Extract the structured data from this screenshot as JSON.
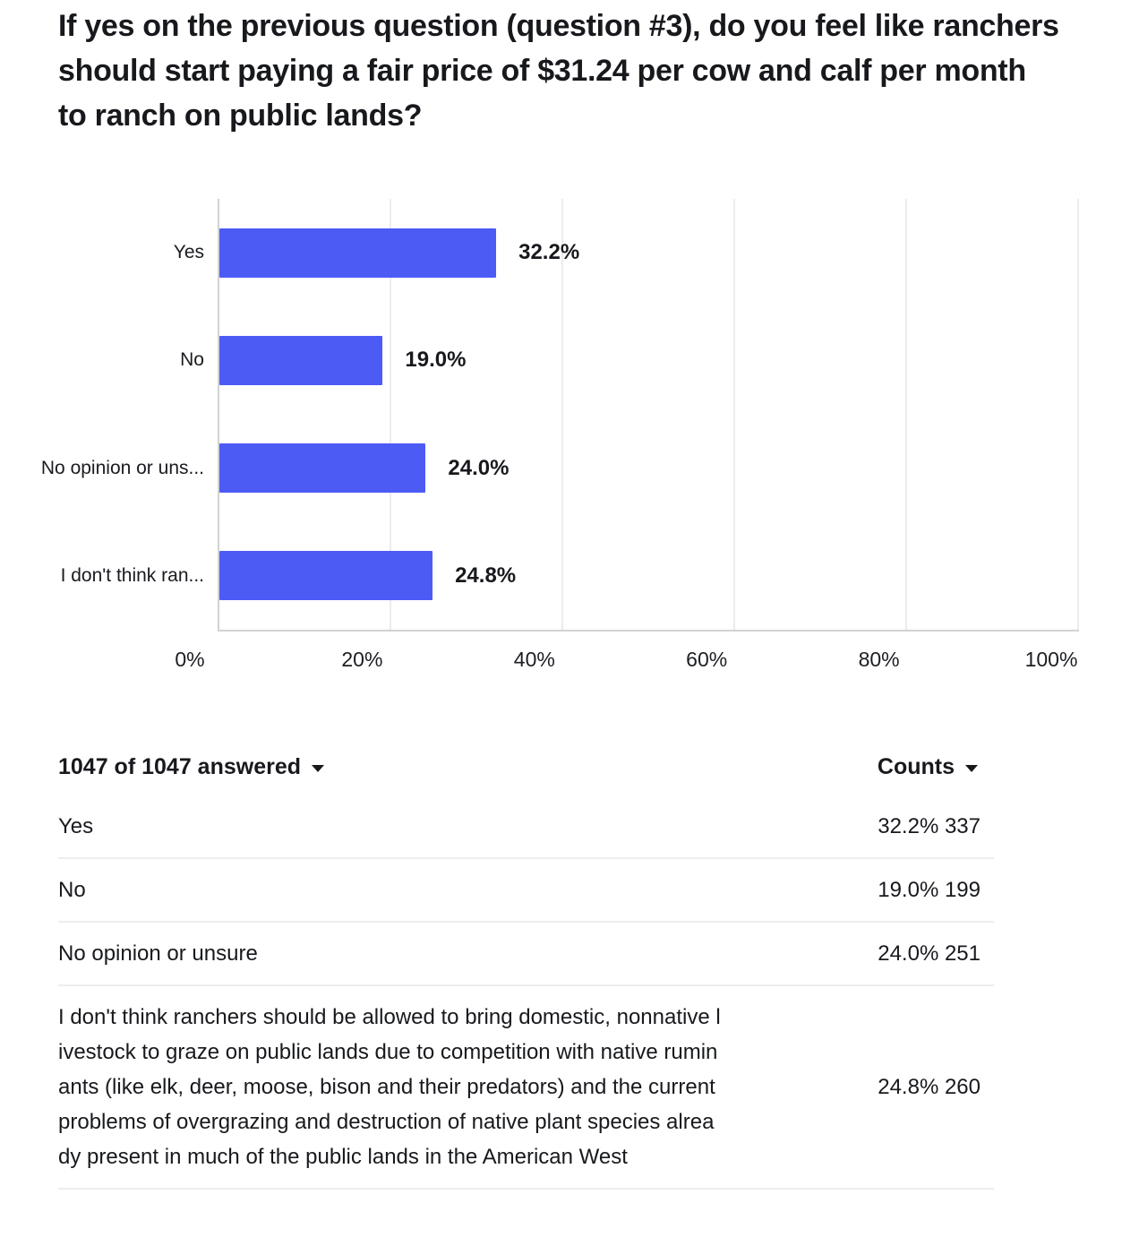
{
  "accent_color": "#4d5bf5",
  "question": {
    "title": "If yes on the previous question (question #3), do you feel like ranchers should start paying a fair price of $31.24 per cow and calf per month to ranch on public lands?"
  },
  "chart_data": {
    "type": "bar",
    "orientation": "horizontal",
    "title": "",
    "xlabel": "",
    "ylabel": "",
    "xlim": [
      0,
      100
    ],
    "x_ticks": [
      "0%",
      "20%",
      "40%",
      "60%",
      "80%",
      "100%"
    ],
    "grid": true,
    "bar_color": "#4d5bf5",
    "categories": [
      "Yes",
      "No",
      "No opinion or unsure",
      "I don't think ranchers should be allowed to bring domestic, nonnative livestock to graze on public lands due to competition with native ruminants (like elk, deer, moose, bison and their predators) and the current problems of overgrazing and destruction of native plant species already present in much of the public lands in the American West"
    ],
    "display_labels": [
      "Yes",
      "No",
      "No opinion or uns...",
      "I don't think ran..."
    ],
    "values": [
      32.2,
      19.0,
      24.0,
      24.8
    ],
    "value_labels": [
      "32.2%",
      "19.0%",
      "24.0%",
      "24.8%"
    ],
    "counts": [
      337,
      199,
      251,
      260
    ]
  },
  "table": {
    "answered_label": "1047 of 1047 answered",
    "counts_label": "Counts",
    "rows": [
      {
        "label": "Yes",
        "value": "32.2% 337"
      },
      {
        "label": "No",
        "value": "19.0% 199"
      },
      {
        "label": "No opinion or unsure",
        "value": "24.0% 251"
      },
      {
        "label": "I don't think ranchers should be allowed to bring domestic, nonnative livestock to graze on public lands due to competition with native ruminants (like elk, deer, moose, bison and their predators) and the current problems of overgrazing and destruction of native plant species already present in much of the public lands in the American West",
        "value": "24.8% 260"
      }
    ]
  }
}
